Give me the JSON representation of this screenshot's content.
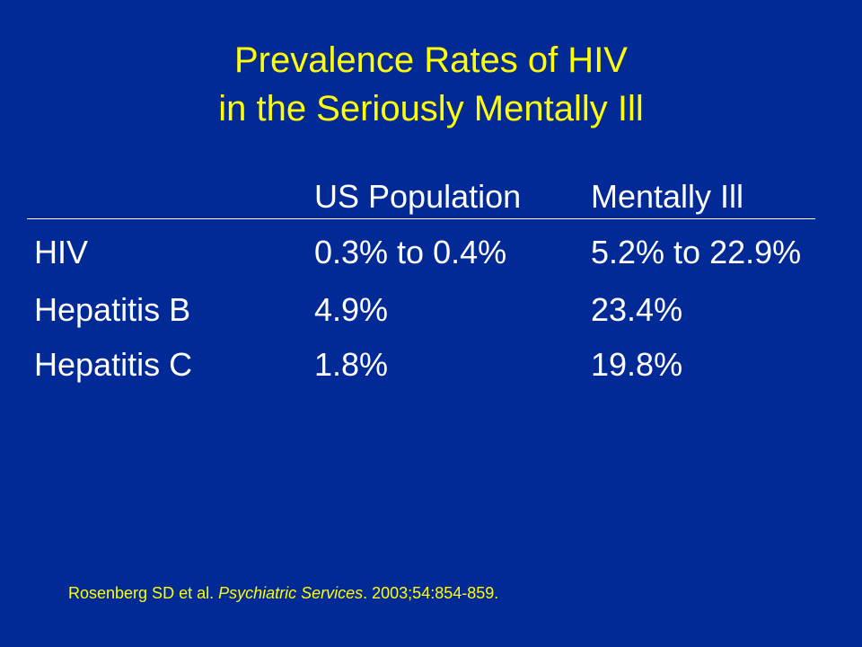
{
  "slide": {
    "title_line1": "Prevalence Rates of HIV",
    "title_line2": "in the Seriously Mentally Ill",
    "table": {
      "headers": [
        "",
        "US Population",
        "Mentally Ill"
      ],
      "rows": [
        {
          "label": "HIV",
          "us_population": "0.3% to 0.4%",
          "mentally_ill": "5.2% to 22.9%"
        },
        {
          "label": "Hepatitis B",
          "us_population": "4.9%",
          "mentally_ill": "23.4%"
        },
        {
          "label": "Hepatitis C",
          "us_population": "1.8%",
          "mentally_ill": "19.8%"
        }
      ]
    },
    "citation": {
      "authors": "Rosenberg SD et al. ",
      "journal": "Psychiatric Services",
      "details": ". 2003;54:854-859."
    }
  },
  "colors": {
    "background": "#022a96",
    "title": "#ffff00",
    "body_text": "#ffffff",
    "citation": "#ffff00"
  }
}
